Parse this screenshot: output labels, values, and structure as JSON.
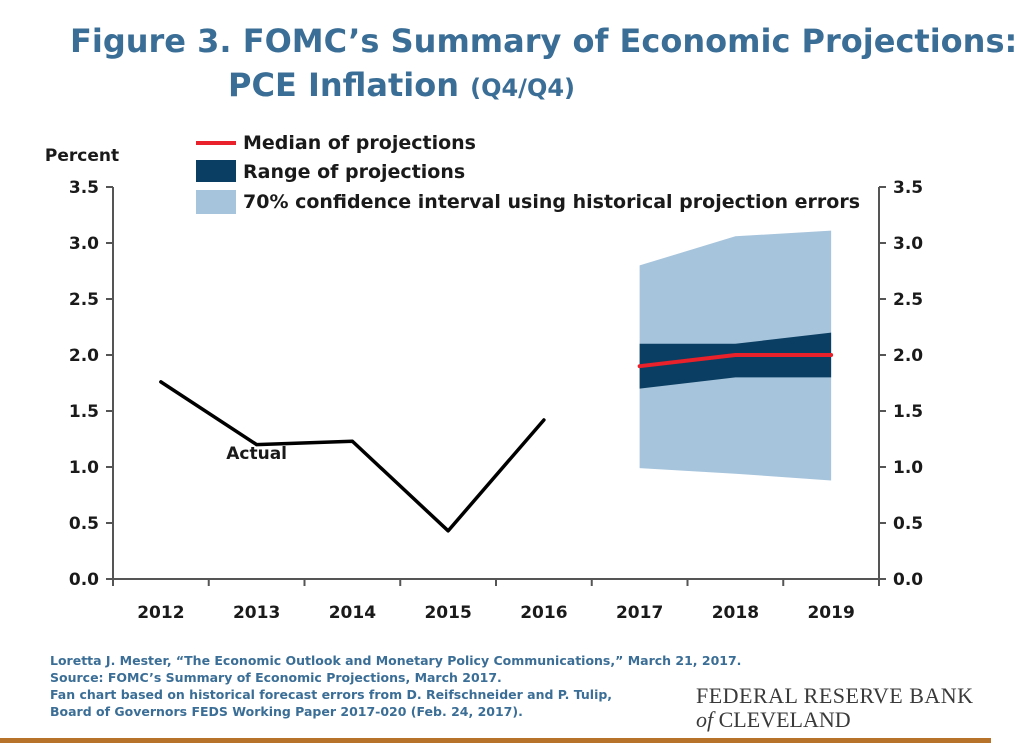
{
  "title": {
    "line1": "Figure 3. FOMC’s Summary of Economic Projections:",
    "line2_main": "PCE Inflation ",
    "line2_unit": "(Q4/Q4)"
  },
  "chart_data": {
    "type": "line",
    "ylabel": "Percent",
    "ylim": [
      0,
      3.5
    ],
    "yticks": [
      "0.0",
      "0.5",
      "1.0",
      "1.5",
      "2.0",
      "2.5",
      "3.0",
      "3.5"
    ],
    "categories": [
      "2012",
      "2013",
      "2014",
      "2015",
      "2016",
      "2017",
      "2018",
      "2019"
    ],
    "grid": false,
    "legend_position": "top",
    "series": [
      {
        "name": "Actual",
        "x": [
          "2012",
          "2013",
          "2014",
          "2015",
          "2016"
        ],
        "values": [
          1.76,
          1.2,
          1.23,
          0.43,
          1.42
        ],
        "color": "#000000"
      },
      {
        "name": "Median of projections",
        "x": [
          "2017",
          "2018",
          "2019"
        ],
        "values": [
          1.9,
          2.0,
          2.0
        ],
        "color": "#e8212a"
      }
    ],
    "bands": [
      {
        "name": "70% confidence interval using historical projection errors",
        "x": [
          "2017",
          "2018",
          "2019"
        ],
        "low": [
          0.99,
          0.94,
          0.88
        ],
        "high": [
          2.8,
          3.06,
          3.11
        ],
        "color": "#a6c4dc"
      },
      {
        "name": "Range of projections",
        "x": [
          "2017",
          "2018",
          "2019"
        ],
        "low": [
          1.7,
          1.8,
          1.8
        ],
        "high": [
          2.1,
          2.1,
          2.2
        ],
        "color": "#0a3e62"
      }
    ],
    "annotations": [
      {
        "text": "Actual",
        "x": "2013",
        "y": 1.0
      }
    ]
  },
  "footnotes": [
    "Loretta J. Mester, “The Economic Outlook and Monetary Policy Communications,” March 21, 2017.",
    "Source: FOMC’s Summary of Economic Projections, March 2017.",
    "Fan chart based on historical forecast errors from D. Reifschneider and P. Tulip,",
    "Board of Governors FEDS Working Paper 2017-020 (Feb. 24, 2017)."
  ],
  "logo": {
    "line1": "FEDERAL RESERVE BANK",
    "of": "of",
    "line2": " CLEVELAND"
  },
  "colors": {
    "title": "#3b6e96",
    "footnote": "#3b6e96",
    "bottom_bar": "#b8732a"
  }
}
